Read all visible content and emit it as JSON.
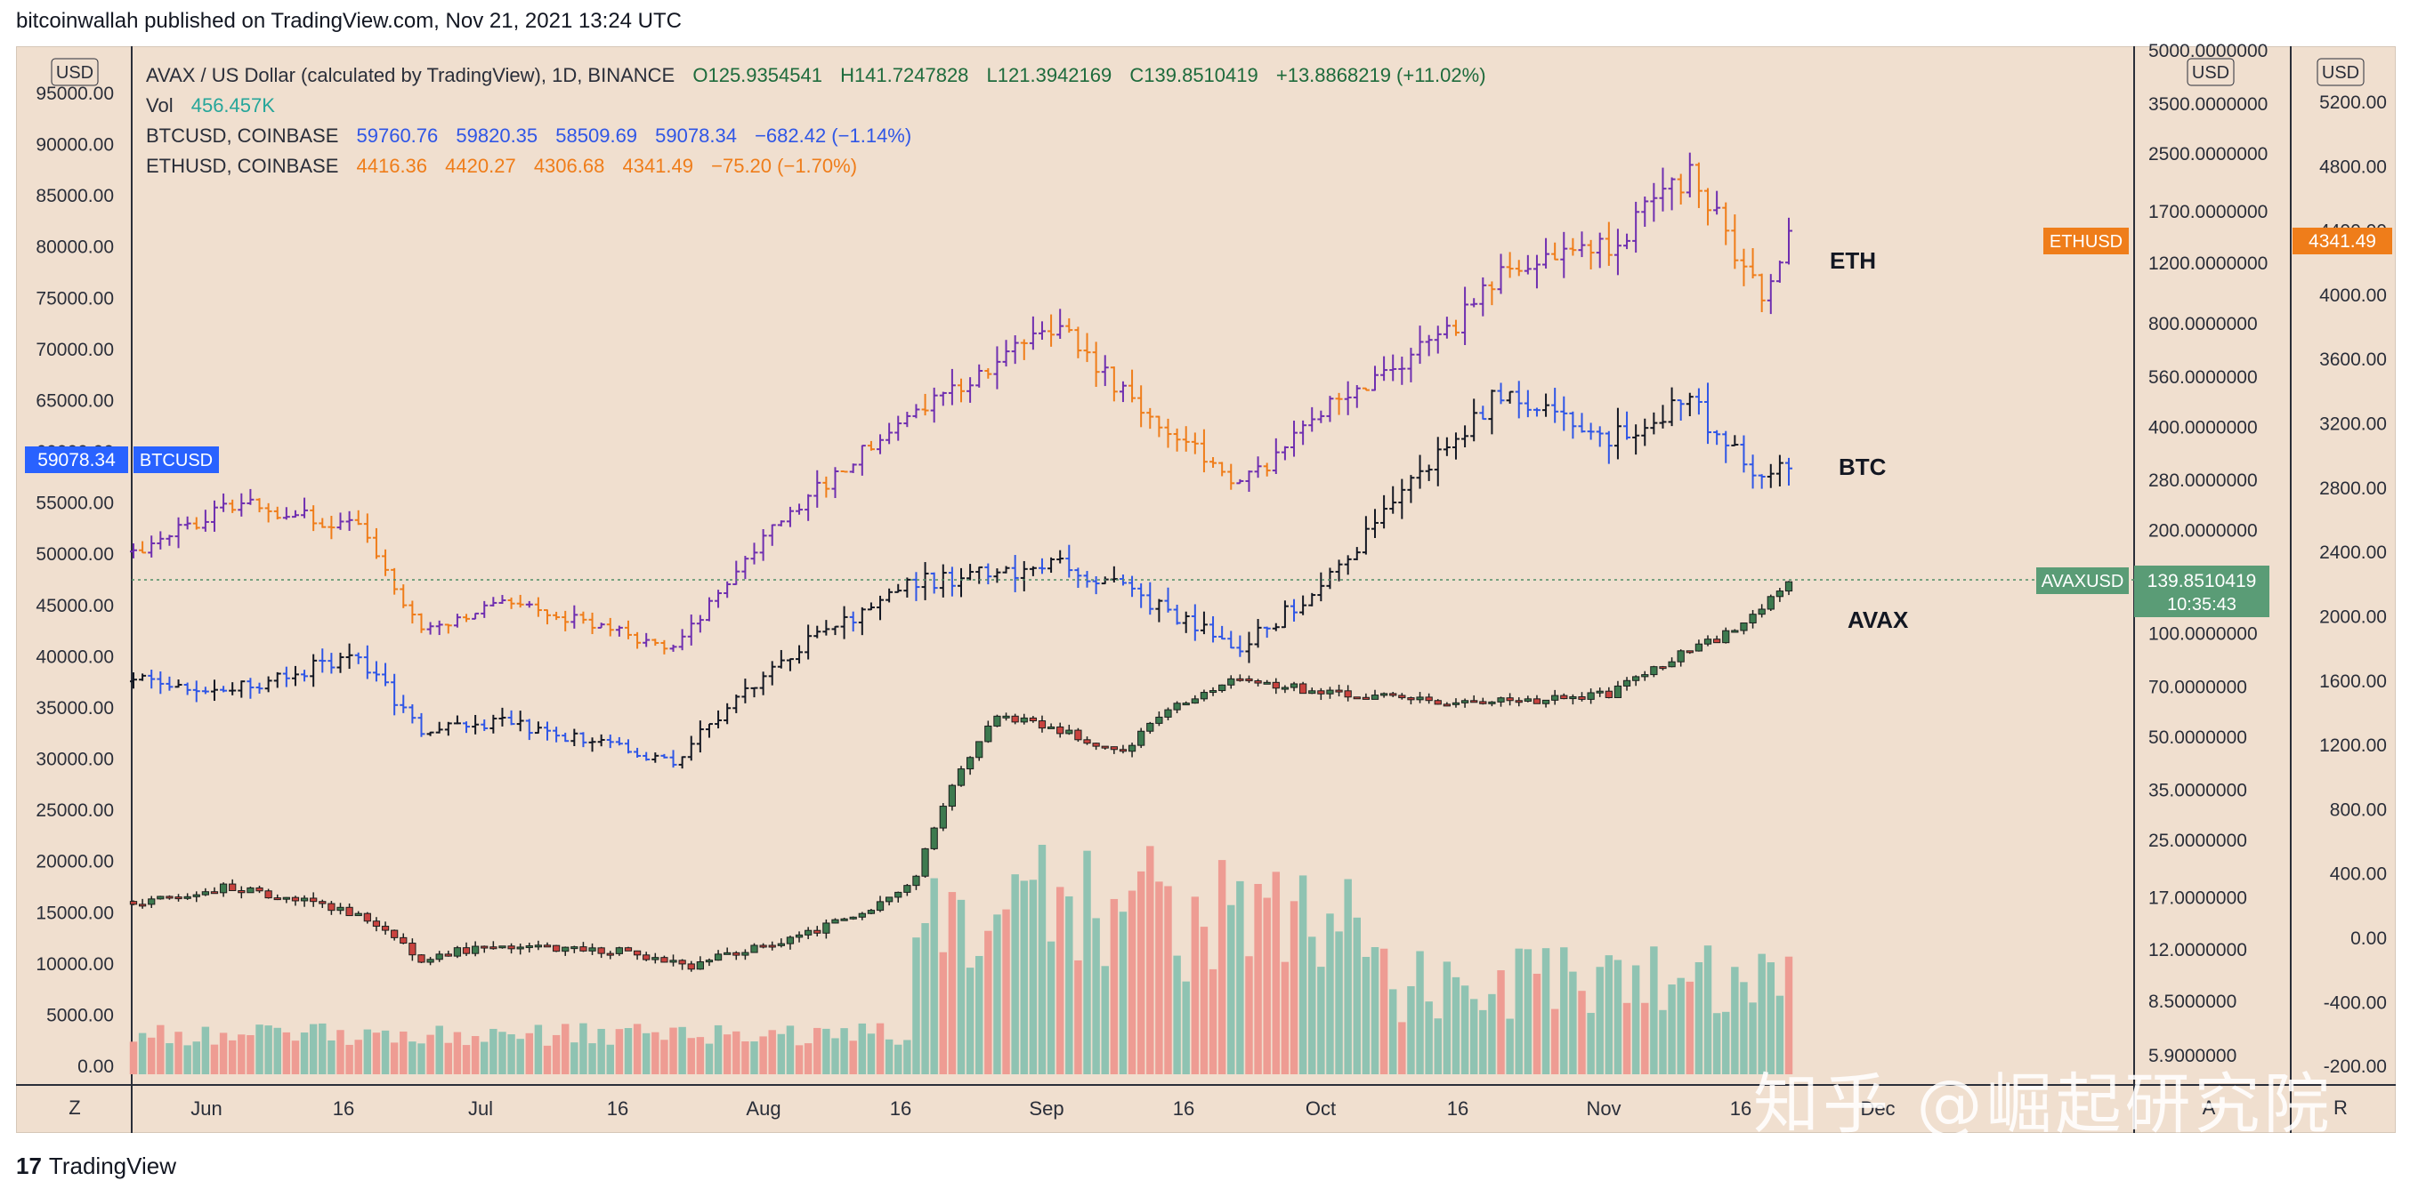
{
  "header": {
    "text": "bitcoinwallah published on TradingView.com, Nov 21, 2021 13:24 UTC"
  },
  "footer": {
    "logo_mark": "17",
    "brand": "TradingView"
  },
  "watermark": "知乎 @崛起研究院",
  "legend": {
    "avax": {
      "name": "AVAX / US Dollar (calculated by TradingView), 1D, BINANCE",
      "o": "O125.9354541",
      "h": "H141.7247828",
      "l": "L121.3942169",
      "c": "C139.8510419",
      "chg": "+13.8868219 (+11.02%)"
    },
    "vol": {
      "name": "Vol",
      "value": "456.457K"
    },
    "btc": {
      "name": "BTCUSD, COINBASE",
      "o": "59760.76",
      "h": "59820.35",
      "l": "58509.69",
      "c": "59078.34",
      "chg": "−682.42 (−1.14%)"
    },
    "eth": {
      "name": "ETHUSD, COINBASE",
      "o": "4416.36",
      "h": "4420.27",
      "l": "4306.68",
      "c": "4341.49",
      "chg": "−75.20 (−1.70%)"
    }
  },
  "colors": {
    "bg": "#f0dfcf",
    "avax_up": "#3d7a4f",
    "avax_down": "#c9433f",
    "vol_up": "#8fc3b2",
    "vol_down": "#ee9c93",
    "btc": "#2f56e6",
    "eth": "#ef7d1a",
    "purple": "#6f2fb0",
    "avax_tag": "#5a9c76",
    "btc_tag": "#2962ff",
    "eth_tag": "#ef7d1a"
  },
  "scale_labels": {
    "left_unit": "USD",
    "mid_unit": "USD",
    "right_unit": "USD"
  },
  "price_tags": {
    "btc_value": "59078.34",
    "btc_name": "BTCUSD",
    "eth_name": "ETHUSD",
    "eth_value": "4341.49",
    "avax_name": "AVAXUSD",
    "avax_value": "139.8510419",
    "avax_countdown": "10:35:43"
  },
  "series_labels": {
    "eth": "ETH",
    "btc": "BTC",
    "avax": "AVAX"
  },
  "time_axis": {
    "reset_button": "Z",
    "labels": [
      "Jun",
      "16",
      "Jul",
      "16",
      "Aug",
      "16",
      "Sep",
      "16",
      "Oct",
      "16",
      "Nov",
      "16",
      "Dec"
    ],
    "right_buttons": [
      "A",
      "R"
    ]
  },
  "chart_data": {
    "type": "candlestick",
    "title": "AVAX / US Dollar (calculated by TradingView), 1D, BINANCE",
    "x_range": [
      "2021-05-21",
      "2021-11-21"
    ],
    "axes": {
      "left_btc": {
        "unit": "USD",
        "ticks": [
          "0.00",
          "5000.00",
          "10000.00",
          "15000.00",
          "20000.00",
          "25000.00",
          "30000.00",
          "35000.00",
          "40000.00",
          "45000.00",
          "50000.00",
          "55000.00",
          "60000.00",
          "65000.00",
          "70000.00",
          "75000.00",
          "80000.00",
          "85000.00",
          "90000.00",
          "95000.00"
        ]
      },
      "mid_avax_log": {
        "unit": "USD",
        "scale": "log",
        "ticks": [
          "5000.0000000",
          "3500.0000000",
          "2500.0000000",
          "1700.0000000",
          "1200.0000000",
          "800.0000000",
          "560.0000000",
          "400.0000000",
          "280.0000000",
          "200.0000000",
          "140.0000000",
          "100.0000000",
          "70.0000000",
          "50.0000000",
          "35.0000000",
          "25.0000000",
          "17.0000000",
          "12.0000000",
          "8.5000000",
          "5.9000000"
        ]
      },
      "right_eth": {
        "unit": "USD",
        "ticks": [
          "5200.00",
          "4800.00",
          "4400.00",
          "4000.00",
          "3600.00",
          "3200.00",
          "2800.00",
          "2400.00",
          "2000.00",
          "1600.00",
          "1200.00",
          "800.00",
          "400.00",
          "0.00",
          "-400.00",
          "-200.00"
        ]
      }
    },
    "series": [
      {
        "name": "AVAXUSD",
        "points": [
          [
            "2021-05-21",
            16.5
          ],
          [
            "2021-06-01",
            18.2
          ],
          [
            "2021-06-15",
            15.2
          ],
          [
            "2021-06-22",
            11.3
          ],
          [
            "2021-07-01",
            12.4
          ],
          [
            "2021-07-15",
            11.8
          ],
          [
            "2021-07-21",
            10.6
          ],
          [
            "2021-08-01",
            12.6
          ],
          [
            "2021-08-10",
            15.1
          ],
          [
            "2021-08-16",
            19.5
          ],
          [
            "2021-08-20",
            36.0
          ],
          [
            "2021-08-25",
            57.0
          ],
          [
            "2021-09-01",
            52.0
          ],
          [
            "2021-09-08",
            45.0
          ],
          [
            "2021-09-12",
            58.0
          ],
          [
            "2021-09-20",
            73.0
          ],
          [
            "2021-10-01",
            67.0
          ],
          [
            "2021-10-16",
            62.0
          ],
          [
            "2021-11-01",
            66.0
          ],
          [
            "2021-11-10",
            89.0
          ],
          [
            "2021-11-16",
            104.0
          ],
          [
            "2021-11-21",
            139.85
          ]
        ]
      },
      {
        "name": "BTCUSD",
        "points": [
          [
            "2021-05-21",
            37500
          ],
          [
            "2021-06-01",
            36700
          ],
          [
            "2021-06-15",
            40100
          ],
          [
            "2021-06-22",
            32500
          ],
          [
            "2021-07-01",
            33500
          ],
          [
            "2021-07-20",
            29800
          ],
          [
            "2021-08-01",
            39800
          ],
          [
            "2021-08-15",
            47000
          ],
          [
            "2021-09-01",
            48800
          ],
          [
            "2021-09-07",
            46800
          ],
          [
            "2021-09-21",
            40700
          ],
          [
            "2021-10-01",
            47500
          ],
          [
            "2021-10-15",
            61500
          ],
          [
            "2021-10-20",
            66000
          ],
          [
            "2021-11-01",
            61300
          ],
          [
            "2021-11-10",
            64900
          ],
          [
            "2021-11-18",
            56900
          ],
          [
            "2021-11-21",
            59078.34
          ]
        ]
      },
      {
        "name": "ETHUSD",
        "points": [
          [
            "2021-05-21",
            2400
          ],
          [
            "2021-06-01",
            2700
          ],
          [
            "2021-06-15",
            2550
          ],
          [
            "2021-06-22",
            1900
          ],
          [
            "2021-07-01",
            2100
          ],
          [
            "2021-07-20",
            1800
          ],
          [
            "2021-08-01",
            2600
          ],
          [
            "2021-08-15",
            3250
          ],
          [
            "2021-09-01",
            3800
          ],
          [
            "2021-09-07",
            3450
          ],
          [
            "2021-09-21",
            2800
          ],
          [
            "2021-10-01",
            3300
          ],
          [
            "2021-10-15",
            3800
          ],
          [
            "2021-10-20",
            4150
          ],
          [
            "2021-11-01",
            4300
          ],
          [
            "2021-11-10",
            4750
          ],
          [
            "2021-11-18",
            4000
          ],
          [
            "2021-11-21",
            4341.49
          ]
        ]
      }
    ],
    "volume": {
      "last": "456.457K"
    }
  }
}
